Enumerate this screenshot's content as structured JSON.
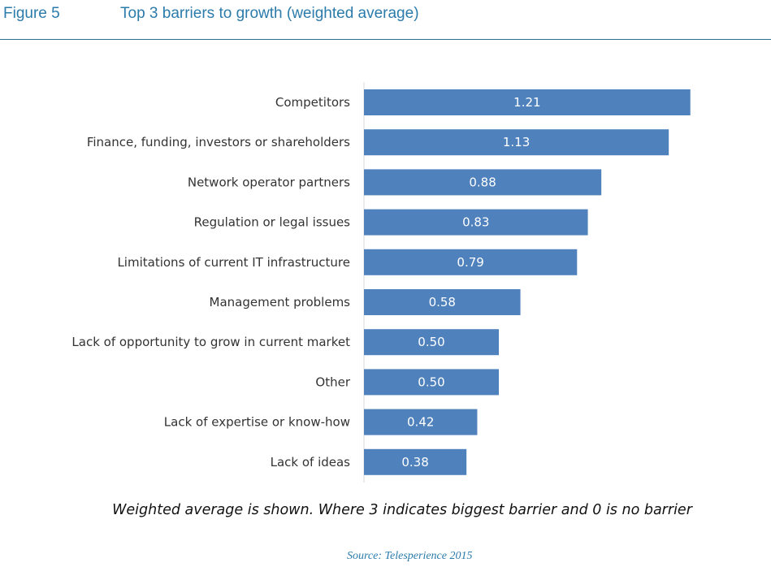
{
  "figure": {
    "label": "Figure 5",
    "title": "Top 3 barriers to growth (weighted average)"
  },
  "note": "Weighted average is shown. Where 3 indicates biggest barrier and 0 is no barrier",
  "source": "Source: Telesperience 2015",
  "colors": {
    "bar": "#4f81bd",
    "header_text": "#2b7bab",
    "rule": "#2f6f8a"
  },
  "chart_data": {
    "type": "bar",
    "orientation": "horizontal",
    "categories": [
      "Competitors",
      "Finance, funding, investors or shareholders",
      "Network operator partners",
      "Regulation or legal issues",
      "Limitations of current IT infrastructure",
      "Management problems",
      "Lack of opportunity to grow in current market",
      "Other",
      "Lack of expertise or know-how",
      "Lack of ideas"
    ],
    "values": [
      1.21,
      1.13,
      0.88,
      0.83,
      0.79,
      0.58,
      0.5,
      0.5,
      0.42,
      0.38
    ],
    "value_labels": [
      "1.21",
      "1.13",
      "0.88",
      "0.83",
      "0.79",
      "0.58",
      "0.50",
      "0.50",
      "0.42",
      "0.38"
    ],
    "title": "",
    "xlabel": "",
    "ylabel": "",
    "grid": false,
    "legend": false
  }
}
